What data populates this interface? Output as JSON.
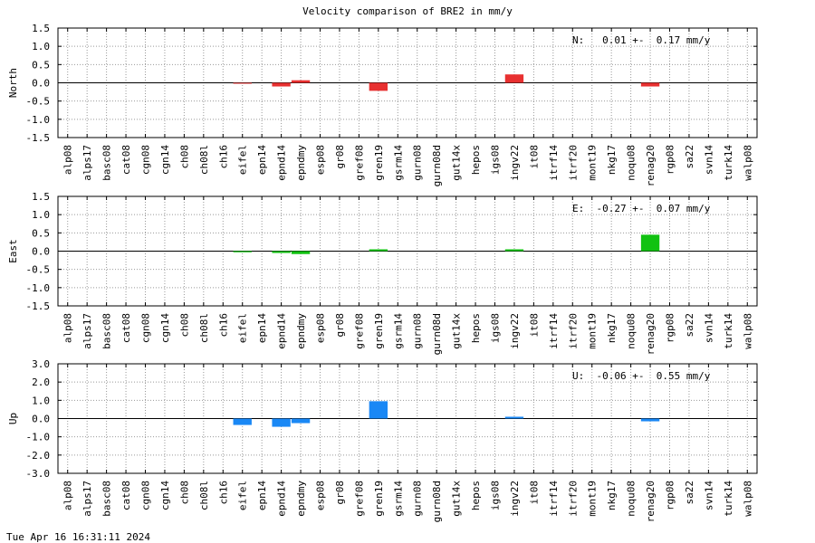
{
  "title": "Velocity comparison of BRE2 in mm/y",
  "timestamp": "Tue Apr 16 16:31:11 2024",
  "chart_data": [
    {
      "type": "bar",
      "component": "north",
      "ylabel": "North",
      "annotation": "N:   0.01 +-  0.17 mm/y",
      "color": "#e83030",
      "ylim": [
        -1.5,
        1.5
      ],
      "yticks": [
        "1.5",
        "1.0",
        "0.5",
        "0.0",
        "-0.5",
        "-1.0",
        "-1.5"
      ],
      "grid": true,
      "categories": [
        "alp08",
        "alps17",
        "basc08",
        "cat08",
        "cgn08",
        "cgn14",
        "ch08",
        "ch08l",
        "ch16",
        "eifel",
        "epn14",
        "epnd14",
        "epndmy",
        "esp08",
        "gr08",
        "gref08",
        "gren19",
        "gsrm14",
        "gurn08",
        "gurn08d",
        "gut14x",
        "hepos",
        "igs08",
        "ingv22",
        "it08",
        "itrf14",
        "itrf20",
        "mont19",
        "nkg17",
        "noqu08",
        "renag20",
        "rgp08",
        "sa22",
        "svn14",
        "turk14",
        "walp08"
      ],
      "values": [
        0,
        0,
        0,
        0,
        0,
        0,
        0,
        0,
        0,
        -0.02,
        0,
        -0.1,
        0.07,
        0,
        0,
        0,
        -0.22,
        0,
        0,
        0,
        0,
        0,
        0,
        0.23,
        0,
        0,
        0,
        0,
        0,
        0,
        -0.1,
        0,
        0,
        0,
        0,
        0
      ]
    },
    {
      "type": "bar",
      "component": "east",
      "ylabel": "East",
      "annotation": "E:  -0.27 +-  0.07 mm/y",
      "color": "#11c211",
      "ylim": [
        -1.5,
        1.5
      ],
      "yticks": [
        "1.5",
        "1.0",
        "0.5",
        "0.0",
        "-0.5",
        "-1.0",
        "-1.5"
      ],
      "grid": true,
      "categories": [
        "alp08",
        "alps17",
        "basc08",
        "cat08",
        "cgn08",
        "cgn14",
        "ch08",
        "ch08l",
        "ch16",
        "eifel",
        "epn14",
        "epnd14",
        "epndmy",
        "esp08",
        "gr08",
        "gref08",
        "gren19",
        "gsrm14",
        "gurn08",
        "gurn08d",
        "gut14x",
        "hepos",
        "igs08",
        "ingv22",
        "it08",
        "itrf14",
        "itrf20",
        "mont19",
        "nkg17",
        "noqu08",
        "renag20",
        "rgp08",
        "sa22",
        "svn14",
        "turk14",
        "walp08"
      ],
      "values": [
        0,
        0,
        0,
        0,
        0,
        0,
        0,
        0,
        0,
        -0.03,
        0,
        -0.05,
        -0.08,
        0,
        0,
        0,
        0.05,
        0,
        0,
        0,
        0,
        0,
        0,
        0.05,
        0,
        0,
        0,
        0,
        0,
        0,
        0.45,
        0,
        0,
        0,
        0,
        0
      ]
    },
    {
      "type": "bar",
      "component": "up",
      "ylabel": "Up",
      "annotation": "U:  -0.06 +-  0.55 mm/y",
      "color": "#1a88f5",
      "ylim": [
        -3.0,
        3.0
      ],
      "yticks": [
        "3.0",
        "2.0",
        "1.0",
        "0.0",
        "-1.0",
        "-2.0",
        "-3.0"
      ],
      "grid": true,
      "categories": [
        "alp08",
        "alps17",
        "basc08",
        "cat08",
        "cgn08",
        "cgn14",
        "ch08",
        "ch08l",
        "ch16",
        "eifel",
        "epn14",
        "epnd14",
        "epndmy",
        "esp08",
        "gr08",
        "gref08",
        "gren19",
        "gsrm14",
        "gurn08",
        "gurn08d",
        "gut14x",
        "hepos",
        "igs08",
        "ingv22",
        "it08",
        "itrf14",
        "itrf20",
        "mont19",
        "nkg17",
        "noqu08",
        "renag20",
        "rgp08",
        "sa22",
        "svn14",
        "turk14",
        "walp08"
      ],
      "values": [
        0,
        0,
        0,
        0,
        0,
        0,
        0,
        0,
        0,
        -0.35,
        0,
        -0.45,
        -0.25,
        0,
        0,
        0,
        0.95,
        0,
        0,
        0,
        0,
        0,
        0,
        0.1,
        0,
        0,
        0,
        0,
        0,
        0,
        -0.15,
        0,
        0,
        0,
        0,
        0
      ]
    }
  ]
}
